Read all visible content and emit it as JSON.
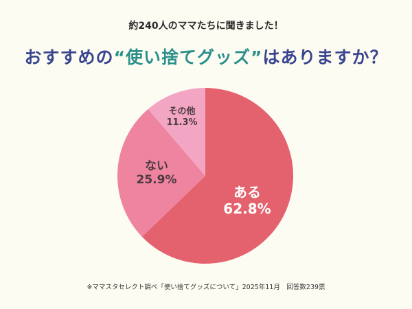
{
  "header": {
    "subtitle": "約240人のママたちに聞きました！",
    "title_pre": "おすすめの",
    "title_accent": "“使い捨てグッズ”",
    "title_post": "はありますか？"
  },
  "chart_data": {
    "type": "pie",
    "title": "おすすめの“使い捨てグッズ”はありますか？",
    "subtitle": "約240人のママたちに聞きました！",
    "categories": [
      "ある",
      "ない",
      "その他"
    ],
    "values": [
      62.8,
      25.9,
      11.3
    ],
    "labels": [
      "62.8%",
      "25.9%",
      "11.3%"
    ],
    "colors": [
      "#e4626e",
      "#ee84a0",
      "#f2a6c4"
    ],
    "start_angle": "12 o'clock",
    "direction": "clockwise",
    "legend": "none (inline labels)"
  },
  "slices": [
    {
      "name": "ある",
      "pct": "62.8%"
    },
    {
      "name": "ない",
      "pct": "25.9%"
    },
    {
      "name": "その他",
      "pct": "11.3%"
    }
  ],
  "footer": "※ママスタセレクト調べ「使い捨てグッズについて」2025年11月　回答数239票"
}
